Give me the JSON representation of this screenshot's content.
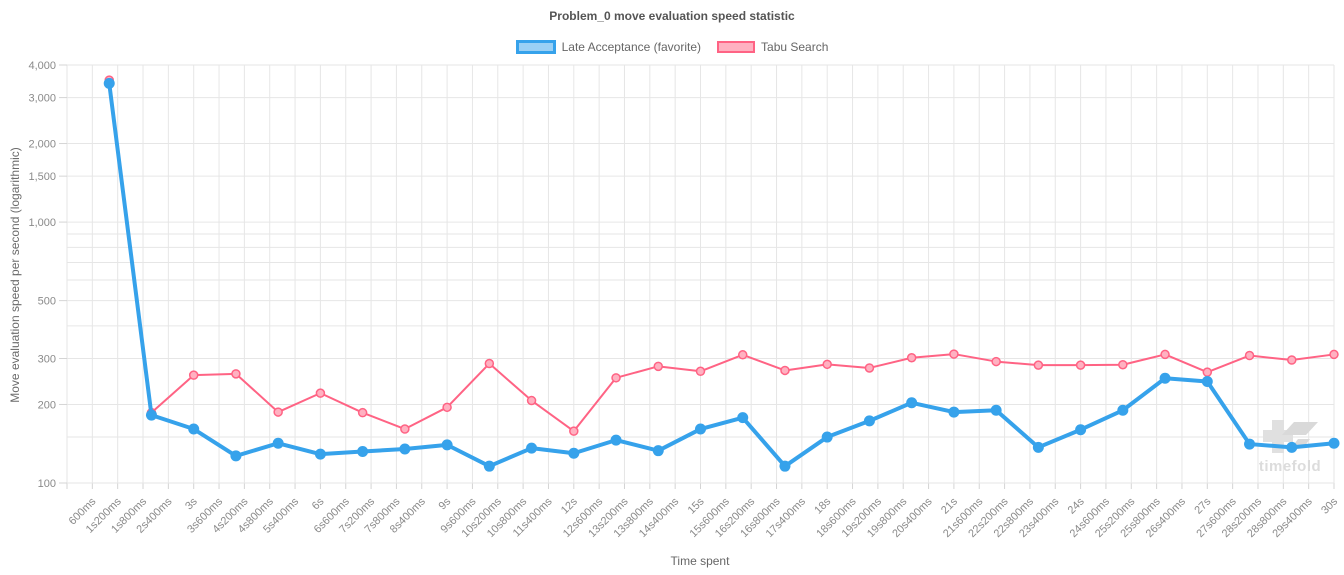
{
  "watermark": {
    "text": "timefold",
    "color": "#d9d9d9"
  },
  "chart_data": {
    "type": "line",
    "title": "Problem_0 move evaluation speed statistic",
    "xlabel": "Time spent",
    "ylabel": "Move evaluation speed per second (logarithmic)",
    "y_scale": "log",
    "ylim": [
      100,
      4000
    ],
    "grid": true,
    "legend_position": "top",
    "x_axis": {
      "unit": "ms",
      "min_ms": 0,
      "max_ms": 30000,
      "grid_step_ms": 600,
      "tick_labels": [
        "600ms",
        "1s200ms",
        "1s800ms",
        "2s400ms",
        "3s",
        "3s600ms",
        "4s200ms",
        "4s800ms",
        "5s400ms",
        "6s",
        "6s600ms",
        "7s200ms",
        "7s800ms",
        "8s400ms",
        "9s",
        "9s600ms",
        "10s200ms",
        "10s800ms",
        "11s400ms",
        "12s",
        "12s600ms",
        "13s200ms",
        "13s800ms",
        "14s400ms",
        "15s",
        "15s600ms",
        "16s200ms",
        "16s800ms",
        "17s400ms",
        "18s",
        "18s600ms",
        "19s200ms",
        "19s800ms",
        "20s400ms",
        "21s",
        "21s600ms",
        "22s200ms",
        "22s800ms",
        "23s400ms",
        "24s",
        "24s600ms",
        "25s200ms",
        "25s800ms",
        "26s400ms",
        "27s",
        "27s600ms",
        "28s200ms",
        "28s800ms",
        "29s400ms",
        "30s"
      ]
    },
    "y_axis": {
      "tick_labels": [
        "4,000",
        "3,000",
        "2,000",
        "1,500",
        "1,000",
        "500",
        "300",
        "200",
        "100"
      ],
      "tick_values": [
        4000,
        3000,
        2000,
        1500,
        1000,
        500,
        300,
        200,
        100
      ],
      "grid_values": [
        4000,
        3000,
        2000,
        1500,
        1000,
        900,
        800,
        700,
        600,
        500,
        400,
        300,
        200,
        150,
        100
      ]
    },
    "x_ms": [
      1000,
      2000,
      3000,
      4000,
      5000,
      6000,
      7000,
      8000,
      9000,
      10000,
      11000,
      12000,
      13000,
      14000,
      15000,
      16000,
      17000,
      18000,
      19000,
      20000,
      21000,
      22000,
      23000,
      24000,
      25000,
      26000,
      27000,
      28000,
      29000,
      30000
    ],
    "series": [
      {
        "name": "Late Acceptance (favorite)",
        "color": "#36A2EB",
        "fill": "#9AD0F5",
        "line_width": 4,
        "point_radius": 5.5,
        "values": [
          3400,
          182,
          161,
          127,
          142,
          129,
          132,
          135,
          140,
          116,
          136,
          130,
          146,
          133,
          161,
          178,
          116,
          150,
          173,
          203,
          187,
          190,
          137,
          160,
          190,
          252,
          245,
          141,
          137,
          142
        ]
      },
      {
        "name": "Tabu Search",
        "color": "#FF6384",
        "fill": "#FFB1C1",
        "line_width": 2,
        "point_radius": 4,
        "values": [
          3500,
          186,
          259,
          262,
          187,
          221,
          186,
          161,
          195,
          287,
          207,
          158,
          253,
          280,
          268,
          310,
          270,
          285,
          276,
          302,
          312,
          292,
          283,
          283,
          284,
          311,
          266,
          308,
          296,
          311
        ]
      }
    ]
  }
}
